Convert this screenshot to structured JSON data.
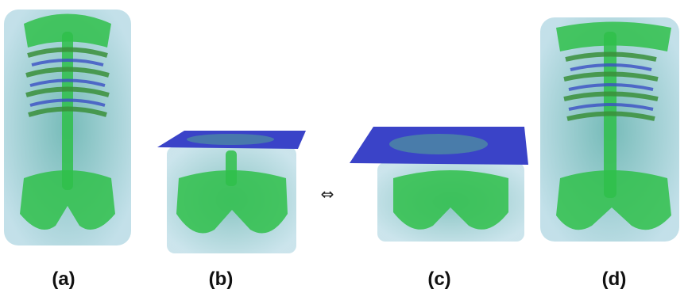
{
  "panels": [
    {
      "label": "(a)"
    },
    {
      "label": "(b)"
    },
    {
      "label": "(c)"
    },
    {
      "label": "(d)"
    }
  ],
  "symbol": "⇔"
}
